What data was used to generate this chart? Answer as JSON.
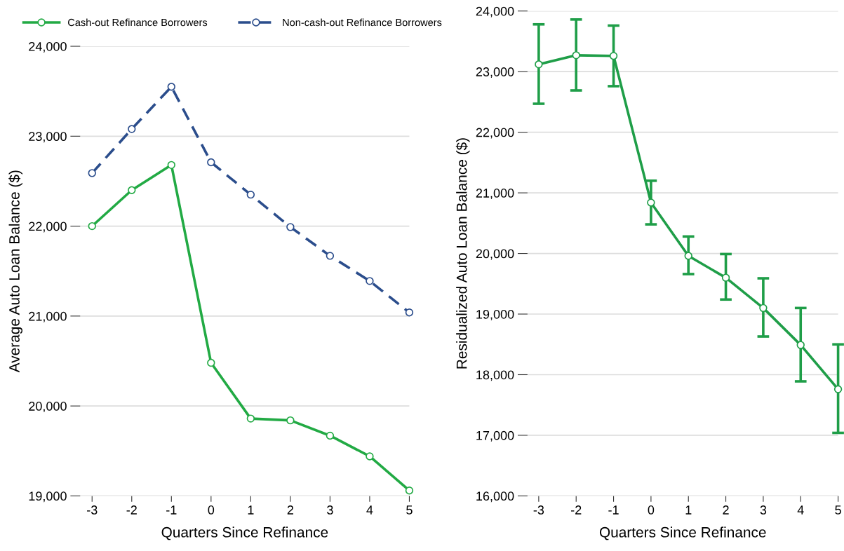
{
  "chart_data": [
    {
      "type": "line",
      "xlabel": "Quarters Since Refinance",
      "ylabel": "Average Auto Loan Balance ($)",
      "x": [
        -3,
        -2,
        -1,
        0,
        1,
        2,
        3,
        4,
        5
      ],
      "xlim": [
        -3.3,
        5
      ],
      "xticks": [
        {
          "value": -3,
          "label": "-3"
        },
        {
          "value": -2,
          "label": "-2"
        },
        {
          "value": -1,
          "label": "-1"
        },
        0,
        1,
        2,
        3,
        4,
        5
      ],
      "ylim": [
        19000,
        24000
      ],
      "yticks": [
        {
          "value": 19000,
          "label": "19,000"
        },
        {
          "value": 20000,
          "label": "20,000"
        },
        {
          "value": 21000,
          "label": "21,000"
        },
        {
          "value": 22000,
          "label": "22,000"
        },
        {
          "value": 23000,
          "label": "23,000"
        },
        {
          "value": 24000,
          "label": "24,000"
        }
      ],
      "grid": "y",
      "legend": "top",
      "marker": "circle",
      "series": [
        {
          "name": "Cash-out Refinance Borrowers",
          "color": "#22aa44",
          "line_style": "solid",
          "values": [
            22000,
            22400,
            22680,
            20480,
            19860,
            19840,
            19670,
            19440,
            19060
          ]
        },
        {
          "name": "Non-cash-out Refinance Borrowers",
          "color": "#2b4d8c",
          "line_style": "dashed",
          "values": [
            22590,
            23080,
            23550,
            22710,
            22350,
            21990,
            21670,
            21390,
            21040
          ]
        }
      ]
    },
    {
      "type": "line",
      "xlabel": "Quarters Since Refinance",
      "ylabel": "Residualized Auto Loan Balance ($)",
      "x": [
        -3,
        -2,
        -1,
        0,
        1,
        2,
        3,
        4,
        5
      ],
      "xlim": [
        -3.3,
        5
      ],
      "xticks": [
        {
          "value": -3,
          "label": "-3"
        },
        {
          "value": -2,
          "label": "-2"
        },
        {
          "value": -1,
          "label": "-1"
        },
        0,
        1,
        2,
        3,
        4,
        5
      ],
      "ylim": [
        16000,
        24000
      ],
      "yticks": [
        {
          "value": 16000,
          "label": "16,000"
        },
        {
          "value": 17000,
          "label": "17,000"
        },
        {
          "value": 18000,
          "label": "18,000"
        },
        {
          "value": 19000,
          "label": "19,000"
        },
        {
          "value": 20000,
          "label": "20,000"
        },
        {
          "value": 21000,
          "label": "21,000"
        },
        {
          "value": 22000,
          "label": "22,000"
        },
        {
          "value": 23000,
          "label": "23,000"
        },
        {
          "value": 24000,
          "label": "24,000"
        }
      ],
      "grid": "y",
      "marker": "circle",
      "series": [
        {
          "color": "#1f9e48",
          "line_style": "solid",
          "values": [
            23120,
            23270,
            23260,
            20840,
            19960,
            19600,
            19100,
            18490,
            17760
          ],
          "errors": [
            [
              22470,
              23780
            ],
            [
              22690,
              23860
            ],
            [
              22760,
              23760
            ],
            [
              20480,
              21200
            ],
            [
              19660,
              20280
            ],
            [
              19240,
              19990
            ],
            [
              18630,
              19590
            ],
            [
              17890,
              19100
            ],
            [
              17040,
              18500
            ]
          ]
        }
      ]
    }
  ]
}
